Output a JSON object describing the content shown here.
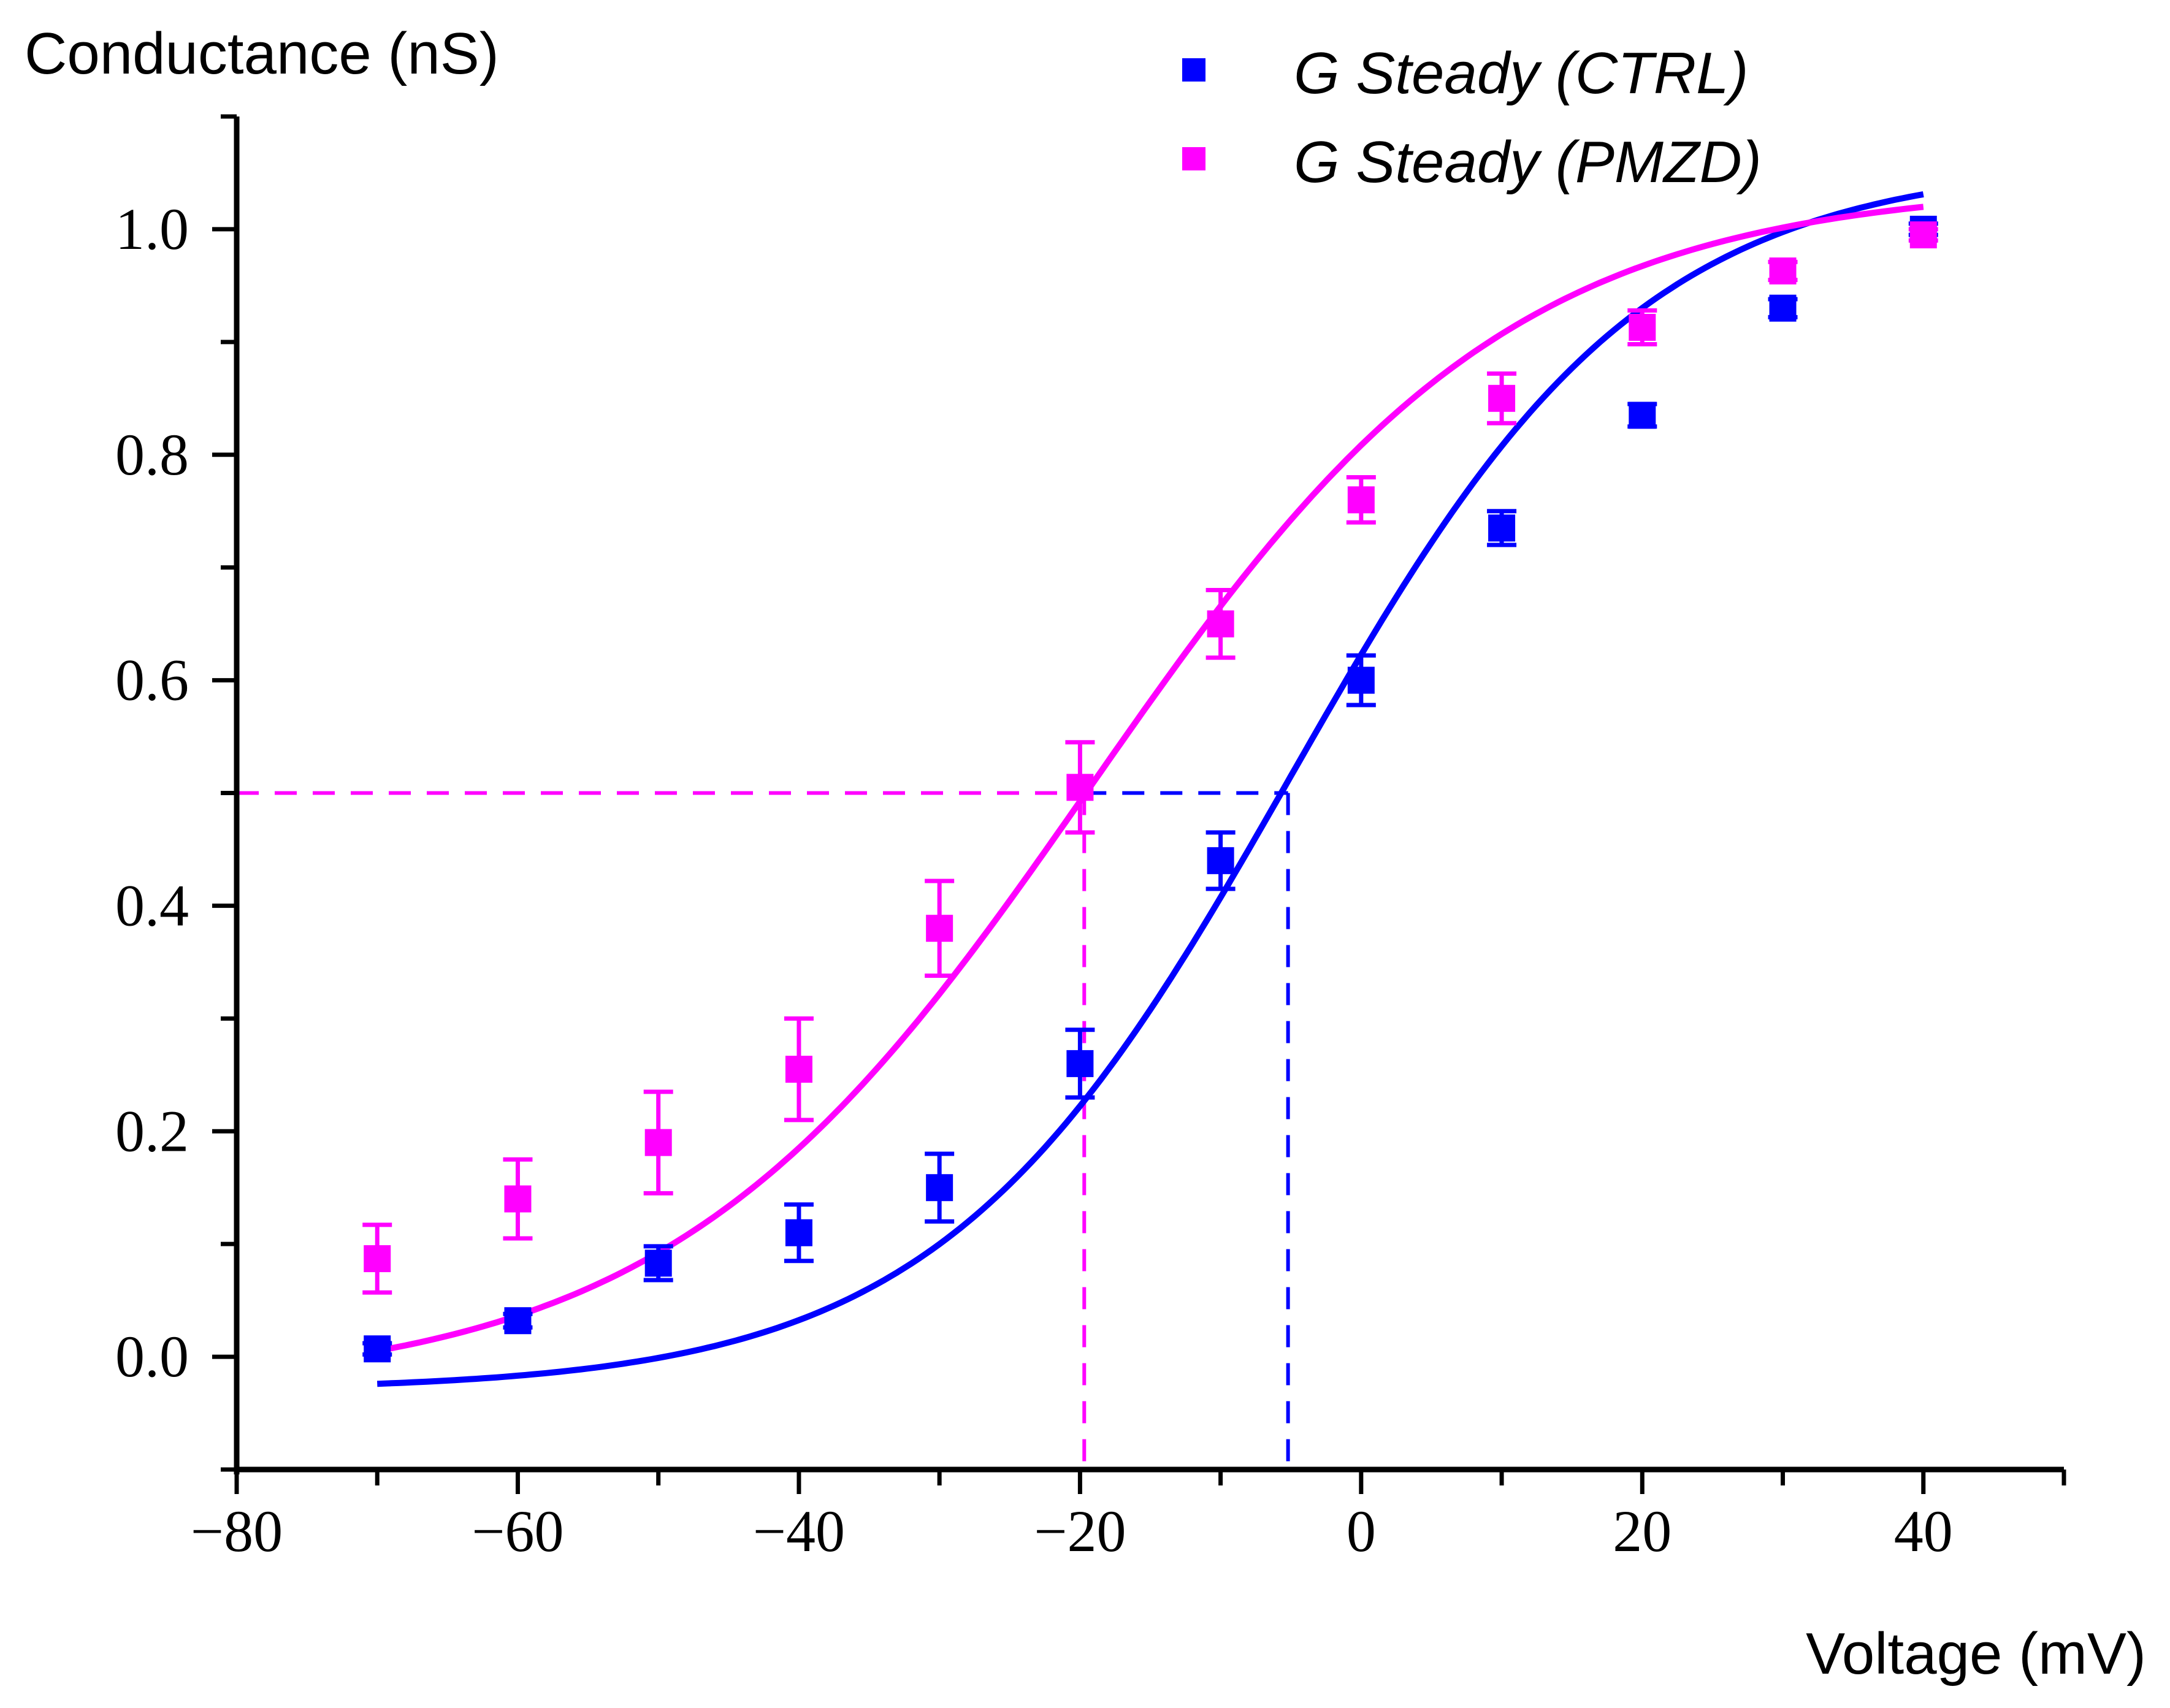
{
  "chart_data": {
    "type": "scatter",
    "title": "",
    "xlabel": "Voltage (mV)",
    "ylabel": "Conductance (nS)",
    "xlim": [
      -80,
      50
    ],
    "ylim": [
      -0.1,
      1.1
    ],
    "xticks": [
      -80,
      -60,
      -40,
      -20,
      0,
      20,
      40
    ],
    "xtick_labels": [
      "−80",
      "−60",
      "−40",
      "−20",
      "0",
      "20",
      "40"
    ],
    "yticks": [
      0.0,
      0.2,
      0.4,
      0.6,
      0.8,
      1.0
    ],
    "ytick_labels": [
      "0.0",
      "0.2",
      "0.4",
      "0.6",
      "0.8",
      "1.0"
    ],
    "legend_position": "top-right",
    "series": [
      {
        "name": "G Steady (CTRL)",
        "color": "#0000ff",
        "x": [
          -70,
          -60,
          -50,
          -40,
          -30,
          -20,
          -10,
          0,
          10,
          20,
          30,
          40
        ],
        "y": [
          0.007,
          0.032,
          0.083,
          0.11,
          0.15,
          0.26,
          0.44,
          0.6,
          0.735,
          0.835,
          0.93,
          1.0
        ],
        "err": [
          0.005,
          0.006,
          0.015,
          0.025,
          0.03,
          0.03,
          0.025,
          0.022,
          0.015,
          0.01,
          0.008,
          0.005
        ],
        "fit": {
          "type": "boltzmann",
          "v_half": -5,
          "k": 12.5,
          "bottom": -0.03,
          "top": 1.06
        },
        "v_half_marker": -5.2,
        "half_level": 0.5
      },
      {
        "name": "G Steady (PMZD)",
        "color": "#ff00ff",
        "x": [
          -70,
          -60,
          -50,
          -40,
          -30,
          -20,
          -10,
          0,
          10,
          20,
          30,
          40
        ],
        "y": [
          0.087,
          0.14,
          0.19,
          0.255,
          0.38,
          0.505,
          0.65,
          0.76,
          0.85,
          0.913,
          0.963,
          0.995
        ],
        "err": [
          0.03,
          0.035,
          0.045,
          0.045,
          0.042,
          0.04,
          0.03,
          0.02,
          0.022,
          0.015,
          0.008,
          0.005
        ],
        "fit": {
          "type": "boltzmann",
          "v_half": -19.3,
          "k": 15,
          "bottom": -0.03,
          "top": 1.04
        },
        "v_half_marker": -19.7,
        "half_level": 0.5
      }
    ]
  }
}
